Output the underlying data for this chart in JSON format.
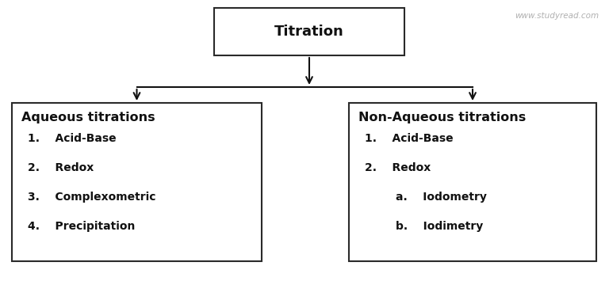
{
  "title": "Titration",
  "watermark": "www.studyread.com",
  "left_box_title": "Aqueous titrations",
  "left_box_items": [
    "1.    Acid-Base",
    "2.    Redox",
    "3.    Complexometric",
    "4.    Precipitation"
  ],
  "right_box_title": "Non-Aqueous titrations",
  "right_box_items": [
    "1.    Acid-Base",
    "2.    Redox",
    "        a.    Iodometry",
    "        b.    Iodimetry"
  ],
  "bg_color": "#ffffff",
  "box_edge_color": "#2a2a2a",
  "text_color": "#111111",
  "arrow_color": "#111111",
  "title_fontsize": 13,
  "watermark_fontsize": 7.5,
  "header_fontsize": 11.5,
  "item_fontsize": 10
}
